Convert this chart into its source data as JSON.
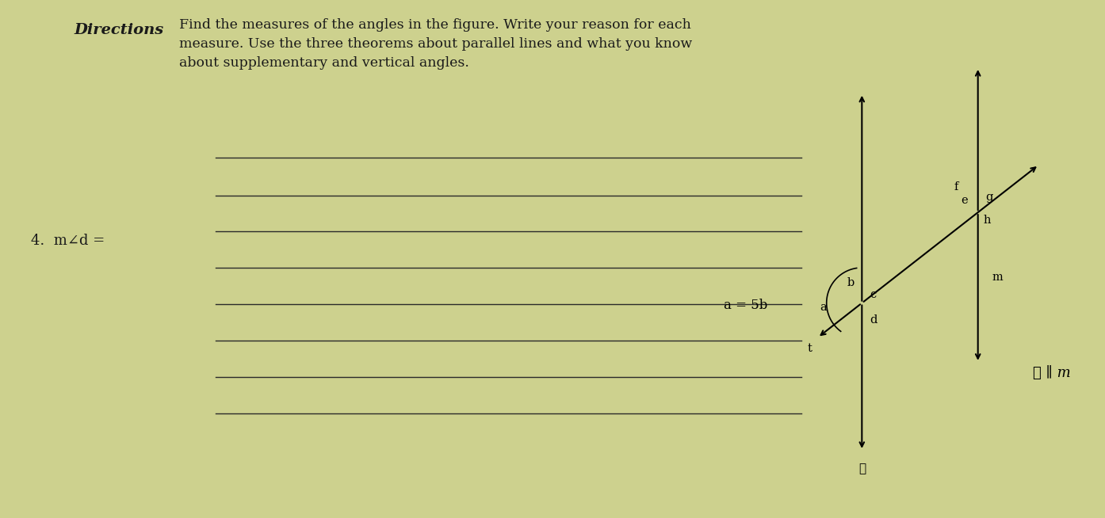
{
  "bg_color": "#cdd18e",
  "text_color": "#1a1a1a",
  "title_text": "Directions",
  "directions_text": "Find the measures of the angles in the figure. Write your reason for each\nmeasure. Use the three theorems about parallel lines and what you know\nabout supplementary and vertical angles.",
  "question_text": "4.  m∠d =",
  "annotation_a5b": "a = 5b",
  "annotation_ell_m": "ℓ ∥ m",
  "label_b": "b",
  "label_a": "a",
  "label_c": "c",
  "label_d": "d",
  "label_t": "t",
  "label_ell": "ℓ",
  "label_e": "e",
  "label_f": "f",
  "label_g": "g",
  "label_h": "h",
  "label_m": "m"
}
